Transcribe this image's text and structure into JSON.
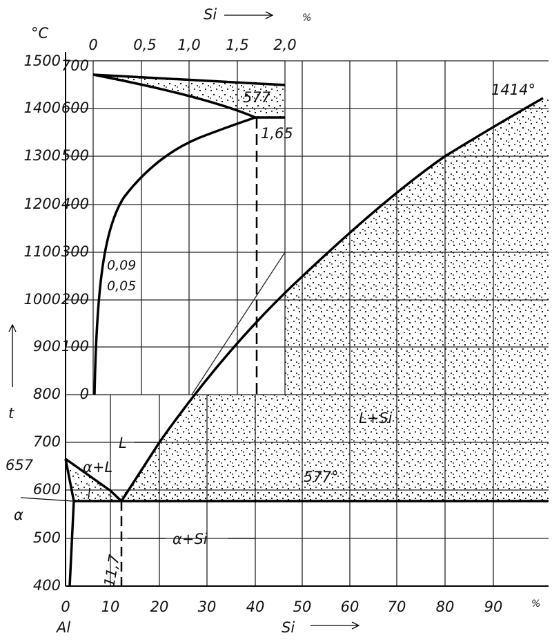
{
  "axes": {
    "y_unit": "°C",
    "y_label": "t",
    "y_ticks": [
      "1500",
      "1400",
      "1300",
      "1200",
      "1100",
      "1000",
      "900",
      "800",
      "700",
      "600",
      "500",
      "400"
    ],
    "x_ticks": [
      "0",
      "10",
      "20",
      "30",
      "40",
      "50",
      "60",
      "70",
      "80",
      "90"
    ],
    "x_unit": "%",
    "x_origin_label": "Al",
    "x_label": "Si"
  },
  "inset": {
    "x_label": "Si",
    "x_unit": "%",
    "x_ticks": [
      "0",
      "0,5",
      "1,0",
      "1,5",
      "2,0"
    ],
    "y_ticks": [
      "700",
      "600",
      "500",
      "400",
      "300",
      "200",
      "100",
      "0"
    ],
    "eutectic_label": "577",
    "limit_label": "1,65",
    "solubility_labels": [
      "0,09",
      "0,05"
    ]
  },
  "regions": {
    "liquid": "L",
    "alpha_liquid": "α+L",
    "alpha": "α",
    "alpha_si": "α+Si",
    "liquid_si": "L+Si"
  },
  "annotations": {
    "al_melting": "657",
    "eutectic_temp": "577°",
    "si_melting": "1414°",
    "eutectic_comp": "11,7"
  }
}
